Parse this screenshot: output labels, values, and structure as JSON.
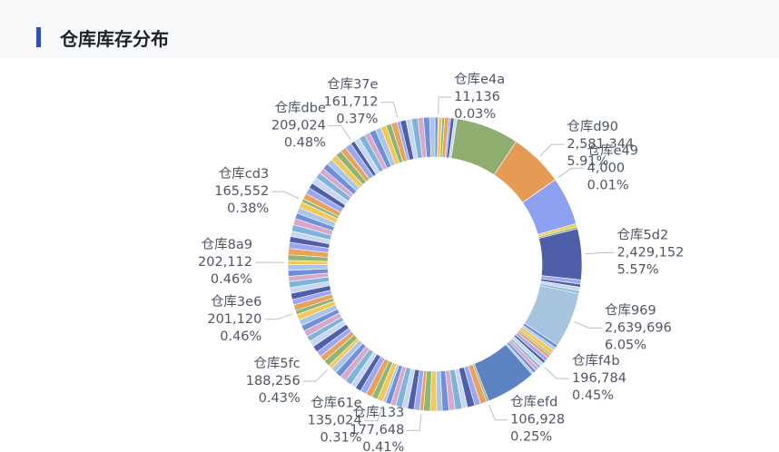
{
  "chart_data": {
    "type": "donut",
    "title": "仓库库存分布",
    "palette": [
      "#6f90d9",
      "#a9c5e8",
      "#f2c85a",
      "#8fb573",
      "#e8a25e",
      "#9ba7f2",
      "#4f5fa8",
      "#c7d7ef",
      "#7fb3d9",
      "#d7a8c8"
    ],
    "slices": [
      {
        "value": 150000
      },
      {
        "name": "仓库e4a",
        "value": 11136,
        "value_label": "11,136",
        "percent_label": "0.03%"
      },
      {
        "value": 180000
      },
      {
        "value": 120000
      },
      {
        "value": 200000
      },
      {
        "value": 90000
      },
      {
        "value": 160000
      },
      {
        "value": 140000
      },
      {
        "value": 3000000,
        "color": "#8fad6f"
      },
      {
        "name": "仓库d90",
        "value": 2581344,
        "value_label": "2,581,344",
        "percent_label": "5.91%",
        "color": "#e59b53"
      },
      {
        "name": "仓库e49",
        "value": 4000,
        "value_label": "4,000",
        "percent_label": "0.01%"
      },
      {
        "value": 2300000,
        "color": "#8ea0f0"
      },
      {
        "value": 150000
      },
      {
        "value": 100000
      },
      {
        "name": "仓库5d2",
        "value": 2429152,
        "value_label": "2,429,152",
        "percent_label": "5.57%",
        "color": "#4f5ea8"
      },
      {
        "value": 200000
      },
      {
        "value": 150000
      },
      {
        "value": 180000
      },
      {
        "value": 120000
      },
      {
        "name": "仓库969",
        "value": 2639696,
        "value_label": "2,639,696",
        "percent_label": "6.05%",
        "color": "#a6c4e0"
      },
      {
        "value": 170000
      },
      {
        "value": 130000
      },
      {
        "value": 210000
      },
      {
        "value": 90000
      },
      {
        "value": 160000
      },
      {
        "value": 190000
      },
      {
        "value": 140000
      },
      {
        "name": "仓库f4b",
        "value": 196784,
        "value_label": "196,784",
        "percent_label": "0.45%"
      },
      {
        "value": 120000
      },
      {
        "value": 180000
      },
      {
        "value": 150000
      },
      {
        "value": 100000
      },
      {
        "value": 2400000,
        "color": "#5d82c4"
      },
      {
        "name": "仓库efd",
        "value": 106928,
        "value_label": "106,928",
        "percent_label": "0.25%"
      },
      {
        "value": 310000
      },
      {
        "value": 280000
      },
      {
        "value": 350000
      },
      {
        "value": 260000
      },
      {
        "value": 330000
      },
      {
        "value": 290000
      },
      {
        "value": 320000
      },
      {
        "value": 270000
      },
      {
        "value": 300000
      },
      {
        "value": 320000
      },
      {
        "name": "仓库133",
        "value": 177648,
        "value_label": "177,648",
        "percent_label": "0.41%"
      },
      {
        "value": 280000
      },
      {
        "value": 300000
      },
      {
        "value": 260000
      },
      {
        "value": 310000
      },
      {
        "value": 250000
      },
      {
        "value": 250000
      },
      {
        "name": "仓库61e",
        "value": 135024,
        "value_label": "135,024",
        "percent_label": "0.31%"
      },
      {
        "value": 290000
      },
      {
        "value": 270000
      },
      {
        "value": 310000
      },
      {
        "value": 300000
      },
      {
        "value": 280000
      },
      {
        "value": 260000
      },
      {
        "value": 320000
      },
      {
        "value": 290000
      },
      {
        "value": 300000
      },
      {
        "value": 280000
      },
      {
        "name": "仓库5fc",
        "value": 188256,
        "value_label": "188,256",
        "percent_label": "0.43%"
      },
      {
        "value": 300000
      },
      {
        "value": 280000
      },
      {
        "value": 270000
      },
      {
        "value": 310000
      },
      {
        "value": 290000
      },
      {
        "value": 260000
      },
      {
        "value": 300000
      },
      {
        "value": 280000
      },
      {
        "value": 290000
      },
      {
        "value": 270000
      },
      {
        "name": "仓库3e6",
        "value": 201120,
        "value_label": "201,120",
        "percent_label": "0.46%"
      },
      {
        "value": 280000
      },
      {
        "value": 260000
      },
      {
        "value": 300000
      },
      {
        "value": 270000
      },
      {
        "value": 290000
      },
      {
        "value": 250000
      },
      {
        "value": 280000
      },
      {
        "value": 270000
      },
      {
        "name": "仓库8a9",
        "value": 202112,
        "value_label": "202,112",
        "percent_label": "0.46%"
      },
      {
        "value": 270000
      },
      {
        "value": 300000
      },
      {
        "value": 290000
      },
      {
        "value": 280000
      },
      {
        "value": 260000
      },
      {
        "value": 310000
      },
      {
        "value": 300000
      },
      {
        "value": 270000
      },
      {
        "value": 280000
      },
      {
        "value": 290000
      },
      {
        "name": "仓库cd3",
        "value": 165552,
        "value_label": "165,552",
        "percent_label": "0.38%"
      },
      {
        "value": 280000
      },
      {
        "value": 300000
      },
      {
        "value": 270000
      },
      {
        "value": 310000
      },
      {
        "value": 290000
      },
      {
        "value": 260000
      },
      {
        "value": 300000
      },
      {
        "value": 280000
      },
      {
        "value": 290000
      },
      {
        "value": 300000
      },
      {
        "value": 270000
      },
      {
        "value": 310000
      },
      {
        "name": "仓库dbe",
        "value": 209024,
        "value_label": "209,024",
        "percent_label": "0.48%"
      },
      {
        "value": 270000
      },
      {
        "value": 290000
      },
      {
        "value": 260000
      },
      {
        "value": 300000
      },
      {
        "value": 280000
      },
      {
        "value": 270000
      },
      {
        "value": 250000
      },
      {
        "value": 280000
      },
      {
        "name": "仓库37e",
        "value": 161712,
        "value_label": "161,712",
        "percent_label": "0.37%"
      },
      {
        "value": 280000
      },
      {
        "value": 260000
      },
      {
        "value": 300000
      },
      {
        "value": 270000
      },
      {
        "value": 290000
      },
      {
        "value": 250000
      }
    ]
  }
}
